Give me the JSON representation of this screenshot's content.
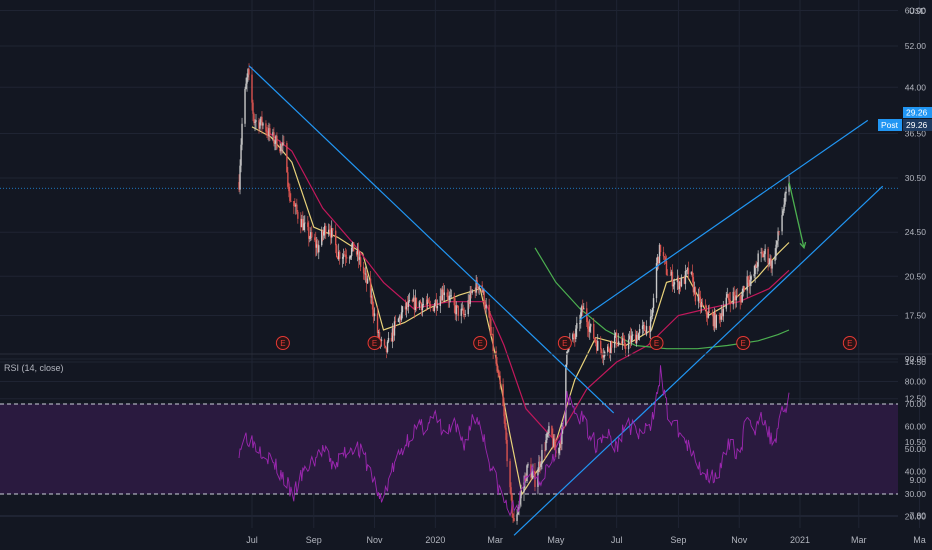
{
  "chart_data": [
    {
      "type": "candlestick",
      "panel": "price",
      "currency_label": "USD",
      "y_scale": "log",
      "ylim": [
        6.6,
        60.0
      ],
      "y_ticks": [
        "60.00",
        "52.00",
        "44.00",
        "36.50",
        "30.50",
        "24.50",
        "20.50",
        "17.50",
        "14.50",
        "12.50",
        "10.50",
        "9.00",
        "7.80",
        "6.60"
      ],
      "last_price": "29.26",
      "post_label": "Post",
      "post_price": "29.26",
      "earnings_marker": "E",
      "earnings_dates": [
        "2019-08-01",
        "2019-11-01",
        "2020-02-15",
        "2020-05-10",
        "2020-08-10",
        "2020-11-05",
        "2021-02-20"
      ],
      "price_path": [
        [
          "2019-06-18",
          30.0
        ],
        [
          "2019-06-22",
          40.5
        ],
        [
          "2019-06-27",
          46.5
        ],
        [
          "2019-07-03",
          38.5
        ],
        [
          "2019-07-12",
          38.0
        ],
        [
          "2019-07-20",
          36.0
        ],
        [
          "2019-07-28",
          35.0
        ],
        [
          "2019-08-04",
          34.0
        ],
        [
          "2019-08-07",
          28.5
        ],
        [
          "2019-08-15",
          26.5
        ],
        [
          "2019-08-25",
          24.5
        ],
        [
          "2019-09-05",
          23.0
        ],
        [
          "2019-09-15",
          25.5
        ],
        [
          "2019-09-25",
          22.5
        ],
        [
          "2019-10-05",
          22.5
        ],
        [
          "2019-10-12",
          23.0
        ],
        [
          "2019-10-20",
          21.0
        ],
        [
          "2019-10-28",
          19.0
        ],
        [
          "2019-11-05",
          16.0
        ],
        [
          "2019-11-12",
          15.0
        ],
        [
          "2019-11-20",
          16.5
        ],
        [
          "2019-12-01",
          18.0
        ],
        [
          "2019-12-15",
          18.5
        ],
        [
          "2019-12-28",
          18.0
        ],
        [
          "2020-01-10",
          19.5
        ],
        [
          "2020-01-20",
          18.0
        ],
        [
          "2020-01-30",
          17.5
        ],
        [
          "2020-02-08",
          19.5
        ],
        [
          "2020-02-15",
          20.0
        ],
        [
          "2020-02-24",
          17.0
        ],
        [
          "2020-03-01",
          14.5
        ],
        [
          "2020-03-08",
          12.5
        ],
        [
          "2020-03-12",
          10.5
        ],
        [
          "2020-03-16",
          8.5
        ],
        [
          "2020-03-20",
          7.5
        ],
        [
          "2020-03-27",
          8.5
        ],
        [
          "2020-04-03",
          9.5
        ],
        [
          "2020-04-10",
          9.0
        ],
        [
          "2020-04-17",
          10.0
        ],
        [
          "2020-04-25",
          11.0
        ],
        [
          "2020-05-01",
          10.0
        ],
        [
          "2020-05-08",
          11.0
        ],
        [
          "2020-05-12",
          15.5
        ],
        [
          "2020-05-20",
          16.0
        ],
        [
          "2020-05-28",
          18.0
        ],
        [
          "2020-06-05",
          16.5
        ],
        [
          "2020-06-12",
          15.5
        ],
        [
          "2020-06-20",
          15.0
        ],
        [
          "2020-06-28",
          16.0
        ],
        [
          "2020-07-08",
          15.5
        ],
        [
          "2020-07-18",
          16.0
        ],
        [
          "2020-07-28",
          16.5
        ],
        [
          "2020-08-05",
          17.0
        ],
        [
          "2020-08-10",
          21.5
        ],
        [
          "2020-08-14",
          23.0
        ],
        [
          "2020-08-20",
          21.0
        ],
        [
          "2020-08-28",
          20.0
        ],
        [
          "2020-09-05",
          20.0
        ],
        [
          "2020-09-12",
          21.0
        ],
        [
          "2020-09-18",
          19.0
        ],
        [
          "2020-09-25",
          18.0
        ],
        [
          "2020-10-02",
          17.5
        ],
        [
          "2020-10-10",
          17.0
        ],
        [
          "2020-10-18",
          18.5
        ],
        [
          "2020-10-25",
          19.0
        ],
        [
          "2020-11-02",
          18.5
        ],
        [
          "2020-11-08",
          20.5
        ],
        [
          "2020-11-14",
          20.0
        ],
        [
          "2020-11-20",
          22.0
        ],
        [
          "2020-11-27",
          22.5
        ],
        [
          "2020-12-04",
          21.5
        ],
        [
          "2020-12-10",
          24.0
        ],
        [
          "2020-12-16",
          27.5
        ],
        [
          "2020-12-21",
          29.26
        ]
      ],
      "moving_averages": [
        {
          "color": "#e8d27a",
          "points": [
            [
              "2019-07-01",
              37.5
            ],
            [
              "2019-07-20",
              36.0
            ],
            [
              "2019-08-10",
              32.5
            ],
            [
              "2019-09-01",
              25.0
            ],
            [
              "2019-09-25",
              24.0
            ],
            [
              "2019-10-20",
              22.5
            ],
            [
              "2019-11-10",
              16.5
            ],
            [
              "2019-12-01",
              17.0
            ],
            [
              "2019-12-25",
              18.0
            ],
            [
              "2020-01-25",
              19.0
            ],
            [
              "2020-02-15",
              19.5
            ],
            [
              "2020-03-01",
              15.0
            ],
            [
              "2020-03-15",
              11.0
            ],
            [
              "2020-03-28",
              8.5
            ],
            [
              "2020-04-15",
              9.5
            ],
            [
              "2020-05-01",
              10.5
            ],
            [
              "2020-05-20",
              13.5
            ],
            [
              "2020-06-10",
              16.0
            ],
            [
              "2020-07-10",
              15.5
            ],
            [
              "2020-08-05",
              16.5
            ],
            [
              "2020-08-20",
              20.0
            ],
            [
              "2020-09-10",
              20.5
            ],
            [
              "2020-10-01",
              17.5
            ],
            [
              "2020-10-25",
              18.5
            ],
            [
              "2020-11-20",
              20.5
            ],
            [
              "2020-12-10",
              22.5
            ],
            [
              "2020-12-21",
              23.5
            ]
          ]
        },
        {
          "color": "#c2185b",
          "points": [
            [
              "2019-07-15",
              37.0
            ],
            [
              "2019-08-10",
              34.0
            ],
            [
              "2019-09-10",
              27.0
            ],
            [
              "2019-10-10",
              23.5
            ],
            [
              "2019-11-10",
              20.0
            ],
            [
              "2019-12-10",
              18.0
            ],
            [
              "2020-01-15",
              18.5
            ],
            [
              "2020-02-20",
              18.5
            ],
            [
              "2020-03-10",
              15.5
            ],
            [
              "2020-04-01",
              12.0
            ],
            [
              "2020-05-01",
              10.5
            ],
            [
              "2020-06-01",
              13.0
            ],
            [
              "2020-07-01",
              14.5
            ],
            [
              "2020-08-01",
              15.5
            ],
            [
              "2020-09-01",
              17.5
            ],
            [
              "2020-10-01",
              18.0
            ],
            [
              "2020-11-01",
              18.5
            ],
            [
              "2020-12-01",
              19.5
            ],
            [
              "2020-12-21",
              21.0
            ]
          ]
        },
        {
          "color": "#4caf50",
          "points": [
            [
              "2020-04-10",
              23.0
            ],
            [
              "2020-05-01",
              20.0
            ],
            [
              "2020-05-25",
              18.0
            ],
            [
              "2020-06-20",
              16.5
            ],
            [
              "2020-07-20",
              15.5
            ],
            [
              "2020-08-20",
              15.3
            ],
            [
              "2020-09-20",
              15.3
            ],
            [
              "2020-10-20",
              15.5
            ],
            [
              "2020-11-20",
              15.8
            ],
            [
              "2020-12-10",
              16.2
            ],
            [
              "2020-12-21",
              16.5
            ]
          ]
        }
      ],
      "trendlines": [
        {
          "from": [
            "2019-06-28",
            48.0
          ],
          "to": [
            "2020-06-28",
            11.8
          ]
        },
        {
          "from": [
            "2020-03-20",
            7.2
          ],
          "to": [
            "2021-03-25",
            29.5
          ]
        },
        {
          "from": [
            "2020-05-25",
            17.2
          ],
          "to": [
            "2021-03-10",
            38.5
          ]
        }
      ],
      "horizontal_line": 29.26,
      "arrow": {
        "from": [
          "2020-12-21",
          30.0
        ],
        "to": [
          "2021-01-05",
          23.0
        ]
      }
    },
    {
      "type": "line",
      "panel": "rsi",
      "title": "RSI (14, close)",
      "ylim": [
        15,
        95
      ],
      "y_ticks": [
        "90.00",
        "80.00",
        "70.00",
        "60.00",
        "50.00",
        "40.00",
        "30.00",
        "20.00"
      ],
      "overbought": 70,
      "oversold": 30,
      "series": [
        {
          "color": "#9c27b0",
          "points": [
            [
              "2019-06-18",
              50
            ],
            [
              "2019-06-25",
              56
            ],
            [
              "2019-07-05",
              52
            ],
            [
              "2019-07-15",
              48
            ],
            [
              "2019-07-25",
              42
            ],
            [
              "2019-08-05",
              35
            ],
            [
              "2019-08-10",
              28
            ],
            [
              "2019-08-20",
              38
            ],
            [
              "2019-08-30",
              44
            ],
            [
              "2019-09-10",
              50
            ],
            [
              "2019-09-20",
              42
            ],
            [
              "2019-10-01",
              48
            ],
            [
              "2019-10-12",
              52
            ],
            [
              "2019-10-22",
              46
            ],
            [
              "2019-11-01",
              35
            ],
            [
              "2019-11-08",
              26
            ],
            [
              "2019-11-18",
              40
            ],
            [
              "2019-12-01",
              52
            ],
            [
              "2019-12-10",
              58
            ],
            [
              "2019-12-20",
              60
            ],
            [
              "2020-01-01",
              64
            ],
            [
              "2020-01-10",
              56
            ],
            [
              "2020-01-20",
              60
            ],
            [
              "2020-01-30",
              52
            ],
            [
              "2020-02-08",
              64
            ],
            [
              "2020-02-15",
              62
            ],
            [
              "2020-02-24",
              45
            ],
            [
              "2020-03-05",
              32
            ],
            [
              "2020-03-15",
              22
            ],
            [
              "2020-03-25",
              26
            ],
            [
              "2020-04-05",
              42
            ],
            [
              "2020-04-15",
              36
            ],
            [
              "2020-04-28",
              48
            ],
            [
              "2020-05-05",
              52
            ],
            [
              "2020-05-12",
              72
            ],
            [
              "2020-05-22",
              66
            ],
            [
              "2020-06-01",
              60
            ],
            [
              "2020-06-10",
              52
            ],
            [
              "2020-06-20",
              58
            ],
            [
              "2020-07-01",
              50
            ],
            [
              "2020-07-10",
              62
            ],
            [
              "2020-07-25",
              56
            ],
            [
              "2020-08-05",
              60
            ],
            [
              "2020-08-10",
              76
            ],
            [
              "2020-08-14",
              84
            ],
            [
              "2020-08-22",
              64
            ],
            [
              "2020-09-05",
              56
            ],
            [
              "2020-09-18",
              44
            ],
            [
              "2020-10-01",
              38
            ],
            [
              "2020-10-12",
              40
            ],
            [
              "2020-10-22",
              52
            ],
            [
              "2020-11-02",
              48
            ],
            [
              "2020-11-08",
              64
            ],
            [
              "2020-11-15",
              56
            ],
            [
              "2020-11-22",
              68
            ],
            [
              "2020-11-29",
              58
            ],
            [
              "2020-12-06",
              52
            ],
            [
              "2020-12-12",
              66
            ],
            [
              "2020-12-18",
              70
            ],
            [
              "2020-12-21",
              73
            ]
          ]
        }
      ]
    }
  ],
  "x_axis": {
    "labels": [
      {
        "text": "Jul",
        "date": "2019-07-01"
      },
      {
        "text": "Sep",
        "date": "2019-09-01"
      },
      {
        "text": "Nov",
        "date": "2019-11-01"
      },
      {
        "text": "2020",
        "date": "2020-01-01"
      },
      {
        "text": "Mar",
        "date": "2020-03-01"
      },
      {
        "text": "May",
        "date": "2020-05-01"
      },
      {
        "text": "Jul",
        "date": "2020-07-01"
      },
      {
        "text": "Sep",
        "date": "2020-09-01"
      },
      {
        "text": "Nov",
        "date": "2020-11-01"
      },
      {
        "text": "2021",
        "date": "2021-01-01"
      },
      {
        "text": "Mar",
        "date": "2021-03-01"
      },
      {
        "text": "Ma",
        "date": "2021-05-01"
      }
    ]
  },
  "colors": {
    "background": "#131722",
    "grid": "#1f2433",
    "axis_text": "#b2b5be",
    "candle_up": "#c9c9c9",
    "candle_down": "#d9534f",
    "trendline": "#2196f3",
    "arrow": "#4caf50",
    "rsi_fill": "#2a1a3f",
    "earnings": "#e53935",
    "price_label": "#2196f3"
  }
}
